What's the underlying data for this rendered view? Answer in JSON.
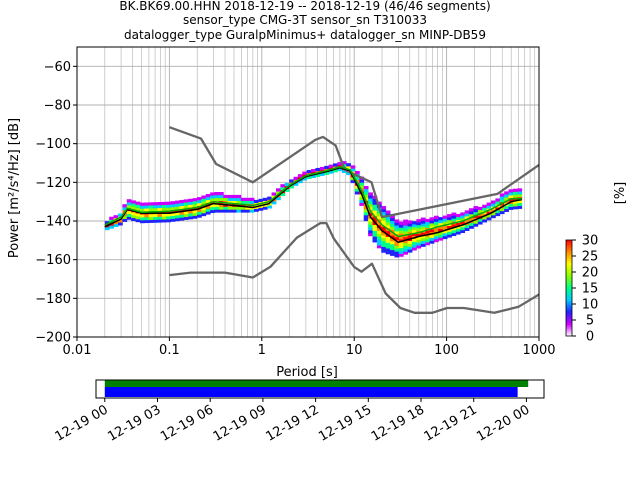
{
  "chart_data": {
    "type": "heatmap",
    "title_lines": [
      "BK.BK69.00.HHN   2018-12-19 -- 2018-12-19  (46/46 segments)",
      "sensor_type CMG-3T sensor_sn T310033",
      "datalogger_type GuralpMinimus+ datalogger_sn MINP-DB59"
    ],
    "xlabel": "Period [s]",
    "ylabel": "Power [m²/s⁴/Hz] [dB]",
    "xscale": "log",
    "xlim": [
      0.01,
      1000
    ],
    "ylim": [
      -200,
      -50
    ],
    "grid": true,
    "x_ticks": [
      {
        "value": 0.01,
        "label": "0.01"
      },
      {
        "value": 0.1,
        "label": "0.1"
      },
      {
        "value": 1,
        "label": "1"
      },
      {
        "value": 10,
        "label": "10"
      },
      {
        "value": 100,
        "label": "100"
      },
      {
        "value": 1000,
        "label": "1000"
      }
    ],
    "y_ticks": [
      {
        "value": -60,
        "label": "−60"
      },
      {
        "value": -80,
        "label": "−80"
      },
      {
        "value": -100,
        "label": "−100"
      },
      {
        "value": -120,
        "label": "−120"
      },
      {
        "value": -140,
        "label": "−140"
      },
      {
        "value": -160,
        "label": "−160"
      },
      {
        "value": -180,
        "label": "−180"
      },
      {
        "value": -200,
        "label": "−200"
      }
    ],
    "series": [
      {
        "role": "new-high-noise-model",
        "color": "#666666",
        "points": [
          [
            0.1,
            -91.5
          ],
          [
            0.22,
            -97.4
          ],
          [
            0.32,
            -110.5
          ],
          [
            0.8,
            -120
          ],
          [
            3.8,
            -98
          ],
          [
            4.6,
            -96.5
          ],
          [
            6.3,
            -101
          ],
          [
            7.9,
            -113.5
          ],
          [
            15.4,
            -120
          ],
          [
            20,
            -138
          ],
          [
            354.8,
            -126
          ],
          [
            1000,
            -111
          ]
        ]
      },
      {
        "role": "new-low-noise-model",
        "color": "#666666",
        "points": [
          [
            0.1,
            -168
          ],
          [
            0.17,
            -166.7
          ],
          [
            0.4,
            -166.7
          ],
          [
            0.8,
            -169.2
          ],
          [
            1.24,
            -163.7
          ],
          [
            2.4,
            -148.6
          ],
          [
            4.3,
            -141.1
          ],
          [
            5,
            -141.1
          ],
          [
            6,
            -149
          ],
          [
            10,
            -163.8
          ],
          [
            12,
            -166.2
          ],
          [
            15.6,
            -162.1
          ],
          [
            21.9,
            -177.5
          ],
          [
            31.6,
            -185
          ],
          [
            45,
            -187.5
          ],
          [
            70,
            -187.5
          ],
          [
            101,
            -185
          ],
          [
            154,
            -185
          ],
          [
            328,
            -187.5
          ],
          [
            600,
            -184.4
          ],
          [
            1000,
            -178
          ]
        ]
      },
      {
        "role": "median-psd",
        "color": "#000000",
        "points": [
          [
            0.02,
            -143
          ],
          [
            0.03,
            -139
          ],
          [
            0.035,
            -134
          ],
          [
            0.05,
            -136
          ],
          [
            0.1,
            -136
          ],
          [
            0.2,
            -134
          ],
          [
            0.3,
            -131
          ],
          [
            0.5,
            -132
          ],
          [
            0.8,
            -133
          ],
          [
            1.2,
            -131
          ],
          [
            2,
            -122
          ],
          [
            3,
            -117
          ],
          [
            5,
            -114.5
          ],
          [
            7,
            -112.5
          ],
          [
            9,
            -114
          ],
          [
            12,
            -126
          ],
          [
            15,
            -138
          ],
          [
            20,
            -145
          ],
          [
            30,
            -151
          ],
          [
            50,
            -148
          ],
          [
            80,
            -146
          ],
          [
            150,
            -142
          ],
          [
            300,
            -136
          ],
          [
            500,
            -130
          ],
          [
            650,
            -129
          ]
        ]
      },
      {
        "role": "mean-psd",
        "color": "#00aa00",
        "points": [
          [
            0.02,
            -142
          ],
          [
            0.03,
            -138
          ],
          [
            0.035,
            -133.5
          ],
          [
            0.05,
            -135.5
          ],
          [
            0.1,
            -135
          ],
          [
            0.2,
            -133
          ],
          [
            0.3,
            -130
          ],
          [
            0.5,
            -131
          ],
          [
            0.8,
            -132
          ],
          [
            1.2,
            -130
          ],
          [
            2,
            -121.5
          ],
          [
            3,
            -116.5
          ],
          [
            5,
            -114
          ],
          [
            7,
            -112
          ],
          [
            9,
            -113.5
          ],
          [
            12,
            -124
          ],
          [
            15,
            -135
          ],
          [
            20,
            -142
          ],
          [
            30,
            -148
          ],
          [
            50,
            -146
          ],
          [
            80,
            -143
          ],
          [
            150,
            -140
          ],
          [
            300,
            -134
          ],
          [
            500,
            -128.5
          ],
          [
            650,
            -128.5
          ]
        ]
      }
    ],
    "density_band": {
      "description": "probability density of PSD values",
      "periods": [
        0.02,
        0.03,
        0.035,
        0.05,
        0.1,
        0.2,
        0.3,
        0.5,
        0.8,
        1.2,
        2,
        3,
        5,
        7,
        9,
        12,
        15,
        20,
        30,
        50,
        80,
        150,
        300,
        500,
        650
      ],
      "centers": [
        -143,
        -139,
        -134,
        -136,
        -135.5,
        -133.5,
        -130.5,
        -131.5,
        -132.5,
        -130.5,
        -121.5,
        -116.5,
        -114,
        -112,
        -113.5,
        -125,
        -137,
        -144,
        -150,
        -147,
        -144.5,
        -141,
        -135,
        -129,
        -128.5
      ],
      "half_widths": [
        2,
        3,
        5,
        5,
        5,
        5,
        5,
        4,
        3,
        3,
        2,
        2,
        2,
        2,
        3,
        7,
        11,
        12,
        9,
        7,
        6,
        5,
        4,
        5,
        5
      ]
    },
    "colorbar": {
      "label": "[%]",
      "range": [
        0,
        30
      ],
      "ticks": [
        {
          "value": 0,
          "label": "0"
        },
        {
          "value": 5,
          "label": "5"
        },
        {
          "value": 10,
          "label": "10"
        },
        {
          "value": 15,
          "label": "15"
        },
        {
          "value": 20,
          "label": "20"
        },
        {
          "value": 25,
          "label": "25"
        },
        {
          "value": 30,
          "label": "30"
        }
      ],
      "colors": [
        "#ffffff",
        "#cc00ff",
        "#2222ff",
        "#00ccff",
        "#00ff88",
        "#88ff00",
        "#ffff00",
        "#ff8800",
        "#ff0000"
      ]
    },
    "timeline": {
      "tick_labels": [
        "12-19 00",
        "12-19 03",
        "12-19 06",
        "12-19 09",
        "12-19 12",
        "12-19 15",
        "12-19 18",
        "12-19 21",
        "12-20 00"
      ],
      "range_hours": [
        -0.5,
        25
      ],
      "bars": [
        {
          "role": "available-data",
          "color": "#008000",
          "start_h": 0,
          "end_h": 24.1
        },
        {
          "role": "used-data",
          "color": "#0000ff",
          "start_h": 0,
          "end_h": 23.5
        }
      ]
    }
  }
}
